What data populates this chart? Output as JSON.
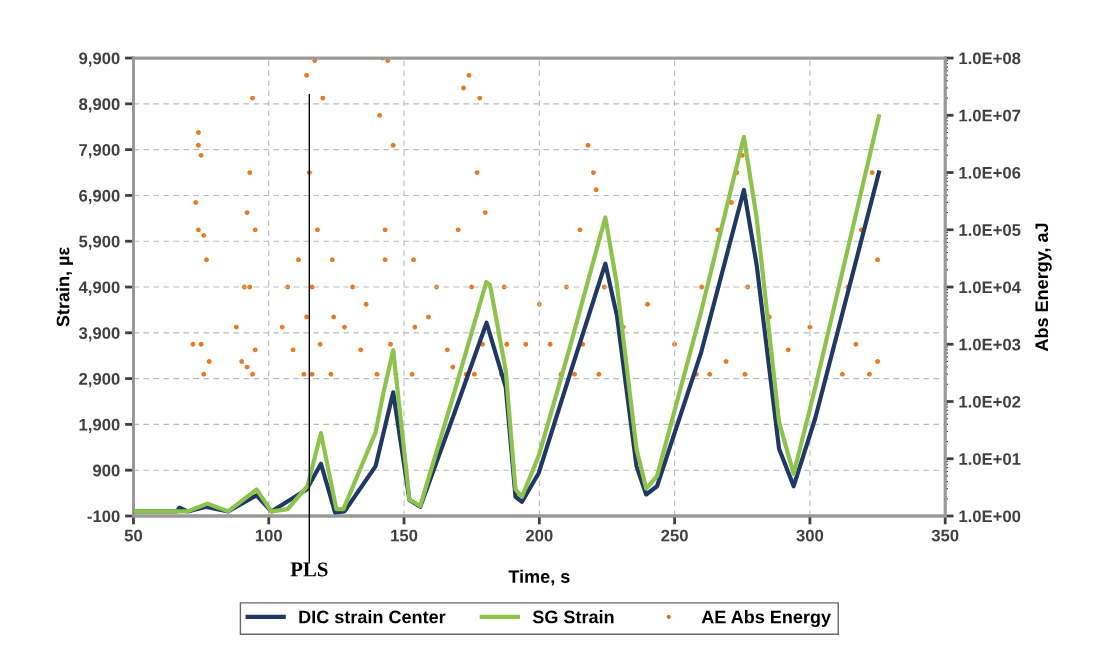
{
  "chart_data": {
    "type": "line",
    "xlabel": "Time, s",
    "ylabel": "Strain, µε",
    "y2label": "Abs Energy, aJ",
    "xlim": [
      50,
      350
    ],
    "xticks": [
      50,
      100,
      150,
      200,
      250,
      300,
      350
    ],
    "ylim": [
      -100,
      9900
    ],
    "yticks": [
      {
        "value": -100,
        "label": "-100"
      },
      {
        "value": 900,
        "label": "900"
      },
      {
        "value": 1900,
        "label": "1,900"
      },
      {
        "value": 2900,
        "label": "2,900"
      },
      {
        "value": 3900,
        "label": "3,900"
      },
      {
        "value": 4900,
        "label": "4,900"
      },
      {
        "value": 5900,
        "label": "5,900"
      },
      {
        "value": 6900,
        "label": "6,900"
      },
      {
        "value": 7900,
        "label": "7,900"
      },
      {
        "value": 8900,
        "label": "8,900"
      },
      {
        "value": 9900,
        "label": "9,900"
      }
    ],
    "y2lim": [
      1,
      100000000
    ],
    "y2ticks": [
      {
        "value": 1,
        "label": "1.0E+00"
      },
      {
        "value": 10,
        "label": "1.0E+01"
      },
      {
        "value": 100,
        "label": "1.0E+02"
      },
      {
        "value": 1000,
        "label": "1.0E+03"
      },
      {
        "value": 10000,
        "label": "1.0E+04"
      },
      {
        "value": 100000,
        "label": "1.0E+05"
      },
      {
        "value": 1000000,
        "label": "1.0E+06"
      },
      {
        "value": 10000000,
        "label": "1.0E+07"
      },
      {
        "value": 100000000,
        "label": "1.0E+08"
      }
    ],
    "log": "y2",
    "grid": true,
    "legend": "bottom",
    "ref_lines": [
      {
        "axis": "x",
        "value": 115,
        "label": "PLS",
        "color": "#000000"
      }
    ],
    "series": [
      {
        "name": "DIC strain Center",
        "color": "#1f3864",
        "x": [
          50,
          66,
          67,
          70,
          77,
          85,
          95.5,
          101,
          114,
          119.3,
          124.5,
          128,
          139.5,
          146,
          152,
          156,
          168.4,
          180.5,
          187.6,
          191.2,
          193.6,
          199.8,
          211.7,
          224.4,
          228.7,
          235.9,
          239.5,
          243.5,
          259.7,
          275.6,
          280.3,
          288.6,
          294,
          302,
          325.5
        ],
        "values": [
          0,
          0,
          80,
          0,
          100,
          0,
          350,
          0,
          480,
          1040,
          -20,
          0,
          990,
          2600,
          250,
          100,
          2110,
          4120,
          2710,
          320,
          210,
          840,
          3070,
          5410,
          4270,
          990,
          370,
          550,
          3450,
          7020,
          5390,
          1370,
          550,
          2040,
          7400
        ]
      },
      {
        "name": "SG Strain",
        "color": "#8dc24c",
        "x": [
          50,
          69.9,
          77.4,
          85,
          95.5,
          101,
          107,
          114.3,
          119.3,
          125,
          127.6,
          139.5,
          142.5,
          146,
          152,
          156,
          168.4,
          180.4,
          181.8,
          187.6,
          191.2,
          193.6,
          199.8,
          211.7,
          224.4,
          228.7,
          235.9,
          239.5,
          243.5,
          259.7,
          275.6,
          280.3,
          288.6,
          294,
          302,
          325.5
        ],
        "values": [
          0,
          0,
          170,
          0,
          480,
          0,
          50,
          550,
          1710,
          50,
          50,
          1730,
          2620,
          3520,
          260,
          120,
          2560,
          5010,
          4940,
          3070,
          480,
          320,
          1220,
          3670,
          6420,
          4940,
          1370,
          500,
          770,
          4340,
          8180,
          6420,
          1950,
          820,
          2710,
          8630
        ]
      },
      {
        "name": "AE Abs Energy",
        "type": "scatter",
        "axis": "y2",
        "color": "#e46c0a",
        "x": [
          72,
          73,
          74,
          75,
          76,
          77,
          75,
          78,
          74,
          76,
          74,
          88,
          90,
          91,
          92,
          93,
          94,
          94,
          95,
          93,
          92,
          95,
          105,
          107,
          109,
          111,
          113,
          114,
          115,
          116,
          117,
          118,
          119,
          120,
          116,
          114,
          123,
          123.5,
          124,
          128,
          131,
          134,
          136,
          140,
          141,
          142,
          143,
          144,
          145,
          146,
          147,
          143,
          153,
          153.5,
          154,
          159,
          162,
          166,
          168,
          170,
          172,
          174,
          175,
          176,
          177,
          178,
          179,
          180,
          173,
          186,
          187,
          188,
          195,
          200,
          204,
          208,
          210,
          213,
          215,
          218,
          220,
          221,
          222,
          224,
          216,
          231,
          240,
          250,
          258,
          260,
          263,
          266,
          269,
          271,
          273,
          275,
          276,
          277,
          285,
          292,
          300,
          312,
          314,
          317,
          319,
          322,
          323,
          325,
          325
        ],
        "values": [
          1000,
          300000,
          5000000,
          2000000,
          300,
          30000,
          1000,
          500,
          100000,
          80000,
          3000000,
          2000,
          500,
          10000,
          400,
          1000000,
          20000000,
          300,
          100000,
          10000,
          200000,
          800,
          2000,
          10000,
          800,
          30000,
          300,
          50000000,
          1000000,
          300,
          90000000,
          100000,
          1000,
          20000000,
          10000,
          3000,
          300,
          30000,
          3000,
          2000,
          10000,
          800,
          5000,
          300,
          10000000,
          100000000,
          100000,
          90000000,
          1000,
          3000000,
          300,
          30000,
          300,
          30000,
          2000,
          3000,
          10000,
          800,
          400,
          100000,
          30000000,
          50000000,
          10000,
          300,
          1000000,
          20000000,
          1000,
          200000,
          300,
          300,
          10000,
          1000,
          1000,
          5000,
          1000,
          300,
          10000,
          300,
          100000,
          3000000,
          1000000,
          500000,
          300,
          10000,
          1000,
          2000,
          5000,
          1000,
          300,
          10000,
          300,
          100000,
          500,
          300000,
          1000000,
          2000000,
          300,
          10000,
          3000,
          800,
          2000,
          300,
          10000,
          1000,
          100000,
          300,
          1000000,
          30000,
          500
        ]
      }
    ]
  }
}
